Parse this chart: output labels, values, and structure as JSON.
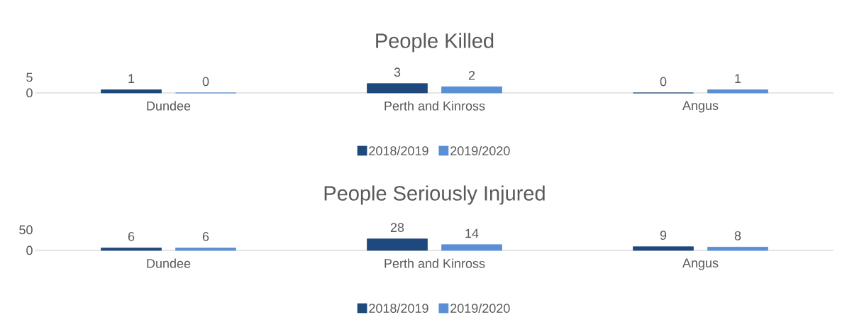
{
  "chart_data": [
    {
      "type": "bar",
      "title": "People Killed",
      "categories": [
        "Dundee",
        "Perth and Kinross",
        "Angus"
      ],
      "series": [
        {
          "name": "2018/2019",
          "color": "#1f497d",
          "values": [
            1,
            3,
            0
          ]
        },
        {
          "name": "2019/2020",
          "color": "#5a8fd6",
          "values": [
            0,
            2,
            1
          ]
        }
      ],
      "ylim": [
        0,
        5
      ],
      "yticks": [
        0,
        5
      ],
      "data_labels": true,
      "legend": "bottom"
    },
    {
      "type": "bar",
      "title": "People Seriously Injured",
      "categories": [
        "Dundee",
        "Perth and Kinross",
        "Angus"
      ],
      "series": [
        {
          "name": "2018/2019",
          "color": "#1f497d",
          "values": [
            6,
            28,
            9
          ]
        },
        {
          "name": "2019/2020",
          "color": "#5a8fd6",
          "values": [
            6,
            14,
            8
          ]
        }
      ],
      "ylim": [
        0,
        50
      ],
      "yticks": [
        0,
        50
      ],
      "data_labels": true,
      "legend": "bottom"
    }
  ]
}
